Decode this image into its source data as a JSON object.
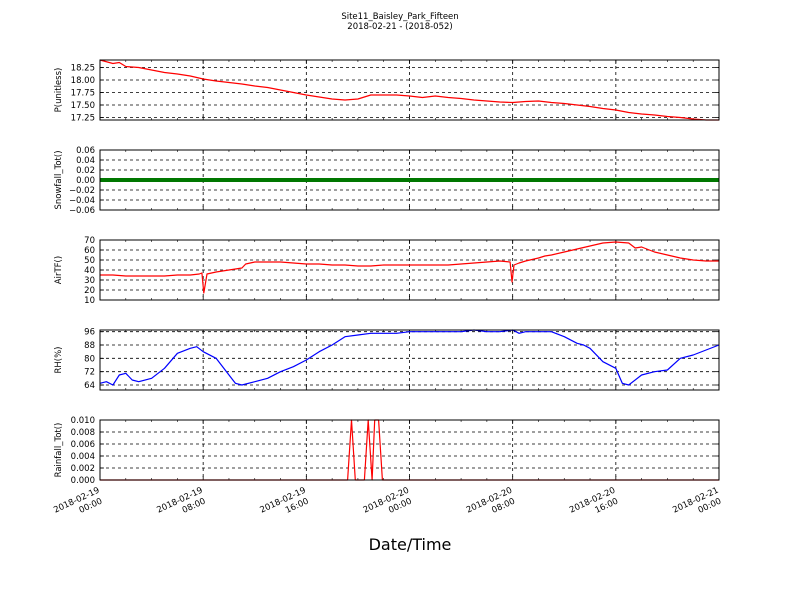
{
  "title_line1": "Site11_Baisley_Park_Fifteen",
  "title_line2": "2018-02-21 - (2018-052)",
  "xlabel": "Date/Time",
  "x_ticks": [
    {
      "t": 0,
      "l1": "2018-02-19",
      "l2": "00:00"
    },
    {
      "t": 8,
      "l1": "2018-02-19",
      "l2": "08:00"
    },
    {
      "t": 16,
      "l1": "2018-02-19",
      "l2": "16:00"
    },
    {
      "t": 24,
      "l1": "2018-02-20",
      "l2": "00:00"
    },
    {
      "t": 32,
      "l1": "2018-02-20",
      "l2": "08:00"
    },
    {
      "t": 40,
      "l1": "2018-02-20",
      "l2": "16:00"
    },
    {
      "t": 48,
      "l1": "2018-02-21",
      "l2": "00:00"
    }
  ],
  "chart_data": [
    {
      "type": "line",
      "ylabel": "P(unitless)",
      "ylim": [
        17.2,
        18.4
      ],
      "yticks": [
        17.25,
        17.5,
        17.75,
        18.0,
        18.25
      ],
      "ytick_labels": [
        "17.25",
        "17.50",
        "17.75",
        "18.00",
        "18.25"
      ],
      "color": "#ff0000",
      "x": [
        0,
        1,
        1.5,
        2,
        3,
        4,
        5,
        6,
        7,
        8,
        9,
        10,
        11,
        12,
        13,
        14,
        15,
        16,
        17,
        18,
        19,
        20,
        21,
        22,
        23,
        24,
        25,
        26,
        27,
        28,
        29,
        30,
        31,
        32,
        33,
        34,
        35,
        36,
        37,
        38,
        39,
        40,
        41,
        42,
        43,
        44,
        45,
        46,
        47,
        48
      ],
      "y": [
        18.4,
        18.33,
        18.35,
        18.27,
        18.25,
        18.2,
        18.15,
        18.12,
        18.08,
        18.02,
        17.98,
        17.95,
        17.92,
        17.88,
        17.85,
        17.8,
        17.75,
        17.7,
        17.66,
        17.62,
        17.6,
        17.62,
        17.7,
        17.7,
        17.7,
        17.68,
        17.65,
        17.68,
        17.65,
        17.63,
        17.6,
        17.58,
        17.56,
        17.55,
        17.57,
        17.58,
        17.55,
        17.53,
        17.5,
        17.47,
        17.43,
        17.4,
        17.35,
        17.32,
        17.3,
        17.27,
        17.25,
        17.22,
        17.2,
        17.2
      ]
    },
    {
      "type": "line",
      "ylabel": "Snowfall_Tot()",
      "ylim": [
        -0.06,
        0.06
      ],
      "yticks": [
        -0.06,
        -0.04,
        -0.02,
        0.0,
        0.02,
        0.04,
        0.06
      ],
      "ytick_labels": [
        "−0.06",
        "−0.04",
        "−0.02",
        "0.00",
        "0.02",
        "0.04",
        "0.06"
      ],
      "color": "#007700",
      "x": [
        0,
        48
      ],
      "y": [
        0,
        0
      ]
    },
    {
      "type": "line",
      "ylabel": "AirTF()",
      "ylim": [
        10,
        70
      ],
      "yticks": [
        10,
        20,
        30,
        40,
        50,
        60,
        70
      ],
      "ytick_labels": [
        "10",
        "20",
        "30",
        "40",
        "50",
        "60",
        "70"
      ],
      "color": "#ff0000",
      "x": [
        0,
        1,
        2,
        3,
        4,
        5,
        6,
        7,
        7.7,
        7.9,
        8.05,
        8.3,
        9,
        10,
        11,
        11.3,
        12,
        13,
        14,
        15,
        16,
        17,
        18,
        19,
        20,
        21,
        22,
        23,
        24,
        25,
        26,
        27,
        28,
        29,
        30,
        31,
        31.8,
        31.95,
        32.1,
        32.5,
        33,
        34,
        34.5,
        35,
        36,
        37,
        38,
        39,
        40,
        41,
        41.5,
        42,
        43,
        44,
        45,
        46,
        47,
        48
      ],
      "y": [
        35,
        35,
        34,
        34,
        34,
        34,
        35,
        35,
        36,
        37,
        17,
        36,
        38,
        40,
        42,
        46,
        48,
        48,
        48,
        47,
        46,
        46,
        45,
        45,
        44,
        44,
        45,
        45,
        45,
        45,
        45,
        45,
        46,
        47,
        48,
        49,
        48,
        28,
        45,
        47,
        49,
        52,
        54,
        55,
        58,
        61,
        64,
        67,
        68,
        67,
        62,
        63,
        58,
        55,
        52,
        50,
        49,
        49
      ]
    },
    {
      "type": "line",
      "ylabel": "RH(%)",
      "ylim": [
        61,
        97
      ],
      "yticks": [
        64,
        72,
        80,
        88,
        96
      ],
      "ytick_labels": [
        "64",
        "72",
        "80",
        "88",
        "96"
      ],
      "color": "#0000ff",
      "x": [
        0,
        0.5,
        1,
        1.5,
        2,
        2.5,
        3,
        4,
        5,
        6,
        7,
        7.5,
        8,
        9,
        10,
        10.5,
        11,
        12,
        13,
        14,
        15,
        16,
        17,
        18,
        19,
        20,
        21,
        22,
        23,
        24,
        25,
        26,
        27,
        28,
        29,
        30,
        31,
        32,
        32.5,
        33,
        34,
        35,
        36,
        37,
        37.5,
        38,
        39,
        40,
        40.5,
        41,
        42,
        43,
        44,
        45,
        46,
        47,
        48
      ],
      "y": [
        65,
        66,
        64,
        70,
        71,
        67,
        66,
        68,
        74,
        83,
        86,
        87,
        84,
        80,
        70,
        65,
        64,
        66,
        68,
        72,
        75,
        79,
        84,
        88,
        93,
        94,
        95,
        95,
        95,
        96,
        96,
        96,
        96,
        96,
        97,
        96,
        96,
        97,
        95,
        96,
        96,
        96,
        93,
        89,
        88,
        86,
        78,
        74,
        65,
        64,
        70,
        72,
        73,
        80,
        82,
        85,
        88
      ]
    },
    {
      "type": "line",
      "ylabel": "Rainfall_Tot()",
      "ylim": [
        0.0,
        0.01
      ],
      "yticks": [
        0.0,
        0.002,
        0.004,
        0.006,
        0.008,
        0.01
      ],
      "ytick_labels": [
        "0.000",
        "0.002",
        "0.004",
        "0.006",
        "0.008",
        "0.010"
      ],
      "color": "#ff0000",
      "x": [
        0,
        19.2,
        19.5,
        19.8,
        20.5,
        20.8,
        21.1,
        21.3,
        21.6,
        21.9,
        48
      ],
      "y": [
        0,
        0,
        0.01,
        0,
        0,
        0.01,
        0,
        0.01,
        0.01,
        0,
        0
      ]
    }
  ]
}
